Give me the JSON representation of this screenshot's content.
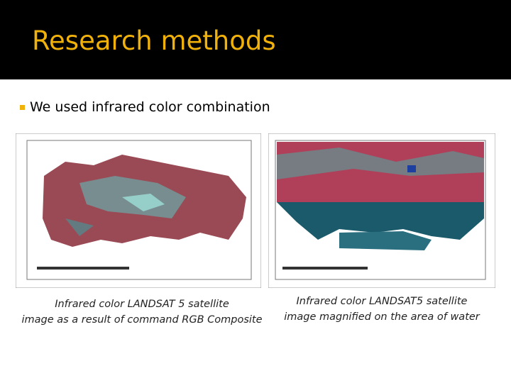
{
  "header": {
    "title": "Research methods"
  },
  "bullets": [
    "We used infrared color combination"
  ],
  "figures": [
    {
      "caption": [
        "Infrared color LANDSAT 5 satellite",
        "image as a result of command RGB Composite"
      ]
    },
    {
      "caption": [
        "Infrared color LANDSAT5 satellite",
        "image magnified on the area of water"
      ]
    }
  ]
}
